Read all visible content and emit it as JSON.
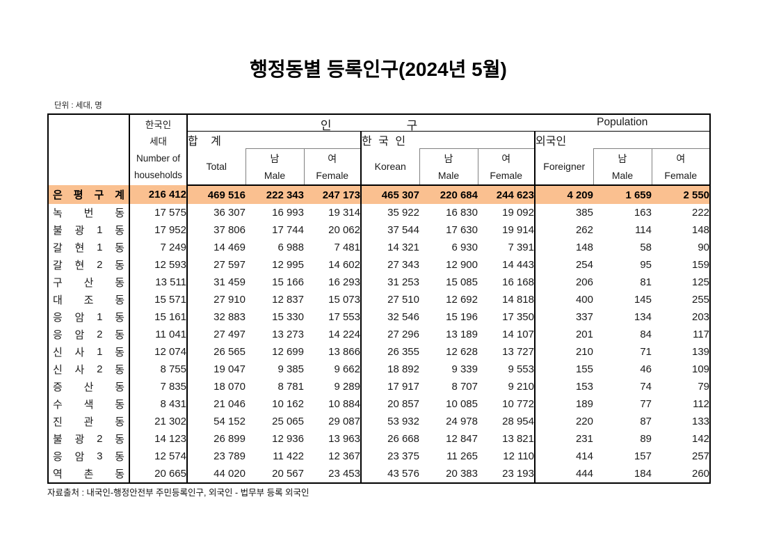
{
  "page": {
    "title": "행정동별 등록인구(2024년 5월)",
    "unit_note": "단위 : 세대, 명",
    "source_note": "자료출처 : 내국인-행정안전부 주민등록인구, 외국인 - 법무부 등록 외국인"
  },
  "colors": {
    "highlight_row": "#FAC090",
    "main_border": "#000000",
    "sub_border": "#7F7F7F"
  },
  "table": {
    "top_header": {
      "word_part1": "인",
      "word_part2": "구",
      "english": "Population"
    },
    "households_header": {
      "line1": "한국인",
      "line2": "세대",
      "line3": "Number of",
      "line4": "households"
    },
    "groups": [
      {
        "label": "합 계",
        "first": "Total",
        "male_ko": "남",
        "male_en": "Male",
        "female_ko": "여",
        "female_en": "Female"
      },
      {
        "label": "한 국 인",
        "first": "Korean",
        "male_ko": "남",
        "male_en": "Male",
        "female_ko": "여",
        "female_en": "Female"
      },
      {
        "label": "외국인",
        "first": "Foreigner",
        "male_ko": "남",
        "male_en": "Male",
        "female_ko": "여",
        "female_en": "Female"
      }
    ],
    "column_keys": [
      "households",
      "total",
      "total_male",
      "total_female",
      "korean",
      "korean_male",
      "korean_female",
      "foreigner",
      "foreigner_male",
      "foreigner_female"
    ],
    "rows": [
      {
        "name": "은평구계",
        "is_total": true,
        "values": [
          "216 412",
          "469 516",
          "222 343",
          "247 173",
          "465 307",
          "220 684",
          "244 623",
          "4 209",
          "1 659",
          "2 550"
        ]
      },
      {
        "name": "녹번동",
        "is_total": false,
        "values": [
          "17 575",
          "36 307",
          "16 993",
          "19 314",
          "35 922",
          "16 830",
          "19 092",
          "385",
          "163",
          "222"
        ]
      },
      {
        "name": "불광1동",
        "is_total": false,
        "values": [
          "17 952",
          "37 806",
          "17 744",
          "20 062",
          "37 544",
          "17 630",
          "19 914",
          "262",
          "114",
          "148"
        ]
      },
      {
        "name": "갈현1동",
        "is_total": false,
        "values": [
          "7 249",
          "14 469",
          "6 988",
          "7 481",
          "14 321",
          "6 930",
          "7 391",
          "148",
          "58",
          "90"
        ]
      },
      {
        "name": "갈현2동",
        "is_total": false,
        "values": [
          "12 593",
          "27 597",
          "12 995",
          "14 602",
          "27 343",
          "12 900",
          "14 443",
          "254",
          "95",
          "159"
        ]
      },
      {
        "name": "구산동",
        "is_total": false,
        "values": [
          "13 511",
          "31 459",
          "15 166",
          "16 293",
          "31 253",
          "15 085",
          "16 168",
          "206",
          "81",
          "125"
        ]
      },
      {
        "name": "대조동",
        "is_total": false,
        "values": [
          "15 571",
          "27 910",
          "12 837",
          "15 073",
          "27 510",
          "12 692",
          "14 818",
          "400",
          "145",
          "255"
        ]
      },
      {
        "name": "응암1동",
        "is_total": false,
        "values": [
          "15 161",
          "32 883",
          "15 330",
          "17 553",
          "32 546",
          "15 196",
          "17 350",
          "337",
          "134",
          "203"
        ]
      },
      {
        "name": "응암2동",
        "is_total": false,
        "values": [
          "11 041",
          "27 497",
          "13 273",
          "14 224",
          "27 296",
          "13 189",
          "14 107",
          "201",
          "84",
          "117"
        ]
      },
      {
        "name": "신사1동",
        "is_total": false,
        "values": [
          "12 074",
          "26 565",
          "12 699",
          "13 866",
          "26 355",
          "12 628",
          "13 727",
          "210",
          "71",
          "139"
        ]
      },
      {
        "name": "신사2동",
        "is_total": false,
        "values": [
          "8 755",
          "19 047",
          "9 385",
          "9 662",
          "18 892",
          "9 339",
          "9 553",
          "155",
          "46",
          "109"
        ]
      },
      {
        "name": "증산동",
        "is_total": false,
        "values": [
          "7 835",
          "18 070",
          "8 781",
          "9 289",
          "17 917",
          "8 707",
          "9 210",
          "153",
          "74",
          "79"
        ]
      },
      {
        "name": "수색동",
        "is_total": false,
        "values": [
          "8 431",
          "21 046",
          "10 162",
          "10 884",
          "20 857",
          "10 085",
          "10 772",
          "189",
          "77",
          "112"
        ]
      },
      {
        "name": "진관동",
        "is_total": false,
        "values": [
          "21 302",
          "54 152",
          "25 065",
          "29 087",
          "53 932",
          "24 978",
          "28 954",
          "220",
          "87",
          "133"
        ]
      },
      {
        "name": "불광2동",
        "is_total": false,
        "values": [
          "14 123",
          "26 899",
          "12 936",
          "13 963",
          "26 668",
          "12 847",
          "13 821",
          "231",
          "89",
          "142"
        ]
      },
      {
        "name": "응암3동",
        "is_total": false,
        "values": [
          "12 574",
          "23 789",
          "11 422",
          "12 367",
          "23 375",
          "11 265",
          "12 110",
          "414",
          "157",
          "257"
        ]
      },
      {
        "name": "역촌동",
        "is_total": false,
        "values": [
          "20 665",
          "44 020",
          "20 567",
          "23 453",
          "43 576",
          "20 383",
          "23 193",
          "444",
          "184",
          "260"
        ]
      }
    ]
  }
}
